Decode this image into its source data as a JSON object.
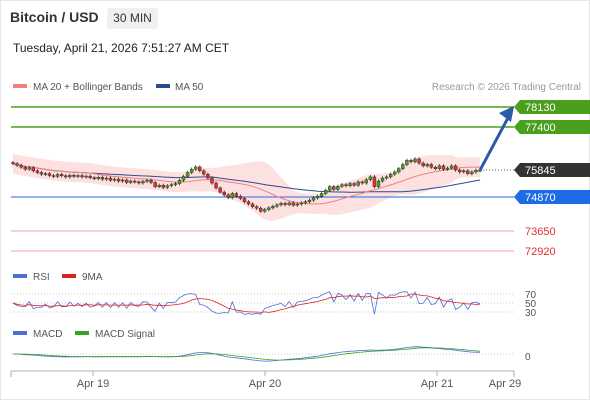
{
  "header": {
    "title": "Bitcoin / USD",
    "timeframe": "30 MIN",
    "datetime": "Tuesday, April 21, 2026 7:51:27 AM CET"
  },
  "chart_data": [
    {
      "type": "candlestick",
      "panel": "price",
      "legend": [
        {
          "name": "MA 20 + Bollinger Bands",
          "color": "#f08080"
        },
        {
          "name": "MA 50",
          "color": "#2b4c8c"
        }
      ],
      "copyright": "Research © 2026 Trading Central",
      "x_ticks": [
        "Apr 19",
        "Apr 20",
        "Apr 21",
        "Apr 29"
      ],
      "price_labels": [
        {
          "value": "78130",
          "kind": "resistance",
          "color": "#4aa01e"
        },
        {
          "value": "77400",
          "kind": "resistance",
          "color": "#4aa01e"
        },
        {
          "value": "75845",
          "kind": "last",
          "color": "#333333"
        },
        {
          "value": "74870",
          "kind": "pivot",
          "color": "#1e6be6"
        },
        {
          "value": "73650",
          "kind": "support",
          "color": "#e03030"
        },
        {
          "value": "72920",
          "kind": "support",
          "color": "#e03030"
        }
      ],
      "candles_close": [
        76080,
        76020,
        75950,
        75880,
        75930,
        75820,
        75760,
        75700,
        75720,
        75650,
        75620,
        75690,
        75640,
        75600,
        75660,
        75620,
        75650,
        75600,
        75630,
        75570,
        75540,
        75590,
        75520,
        75560,
        75480,
        75520,
        75450,
        75490,
        75400,
        75450,
        75420,
        75380,
        75440,
        75480,
        75400,
        75250,
        75300,
        75220,
        75280,
        75320,
        75360,
        75480,
        75620,
        75760,
        75880,
        75960,
        75820,
        75700,
        75560,
        75380,
        75200,
        75050,
        74950,
        74850,
        75000,
        74900,
        74820,
        74700,
        74620,
        74520,
        74470,
        74360,
        74420,
        74480,
        74540,
        74590,
        74640,
        74600,
        74660,
        74580,
        74620,
        74660,
        74700,
        74760,
        74840,
        74900,
        75000,
        75120,
        75250,
        75150,
        75260,
        75320,
        75280,
        75360,
        75300,
        75420,
        75380,
        75500,
        75600,
        75250,
        75450,
        75560,
        75600,
        75700,
        75780,
        75900,
        76050,
        76200,
        76150,
        76250,
        76100,
        76000,
        76050,
        75950,
        75900,
        76000,
        75880,
        75920,
        76000,
        75850,
        75780,
        75820,
        75720,
        75780,
        75840,
        75845
      ],
      "forecast": {
        "from": 75845,
        "to": 78130
      }
    },
    {
      "type": "line",
      "panel": "rsi",
      "series": [
        {
          "name": "RSI",
          "color": "#4a6fd6"
        },
        {
          "name": "9MA",
          "color": "#e02020"
        }
      ],
      "levels": [
        "70",
        "50",
        "30"
      ]
    },
    {
      "type": "line",
      "panel": "macd",
      "series": [
        {
          "name": "MACD",
          "color": "#4a6fd6"
        },
        {
          "name": "MACD Signal",
          "color": "#3aa020"
        }
      ],
      "levels": [
        "0"
      ]
    }
  ]
}
